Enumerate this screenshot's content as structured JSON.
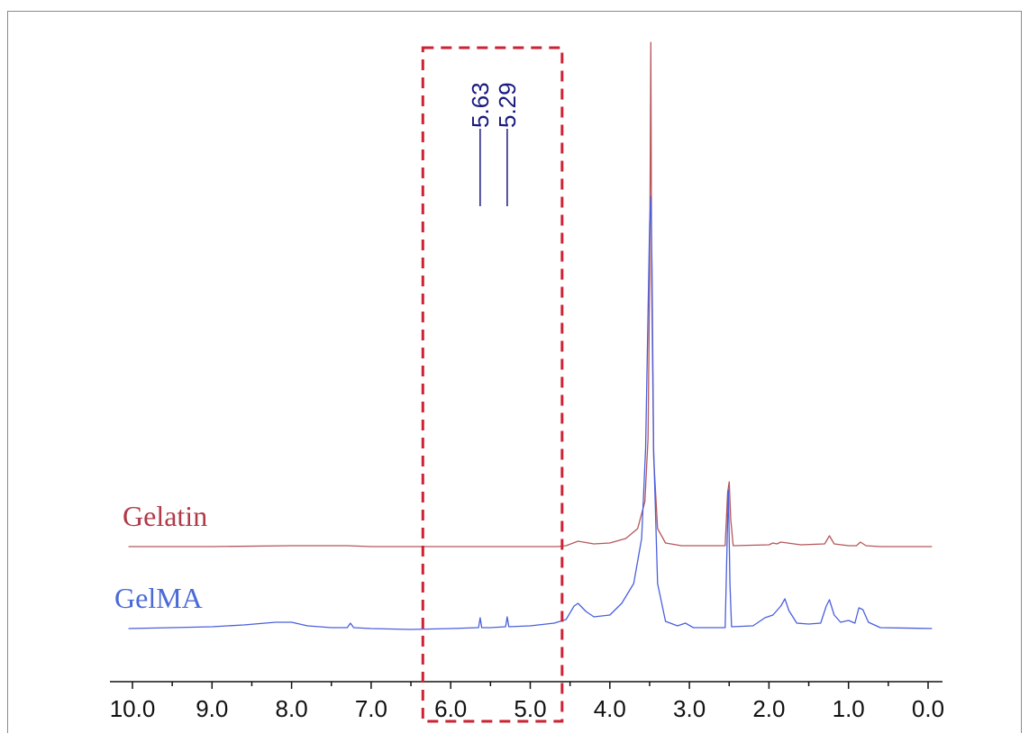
{
  "chart_data": {
    "type": "line",
    "xlabel": "",
    "ylabel": "",
    "xlim": [
      10.2,
      -0.1
    ],
    "x_reversed": true,
    "ticks": [
      "10.0",
      "9.0",
      "8.0",
      "7.0",
      "6.0",
      "5.0",
      "4.0",
      "3.0",
      "2.0",
      "1.0",
      "0.0"
    ],
    "tick_values": [
      10,
      9,
      8,
      7,
      6,
      5,
      4,
      3,
      2,
      1,
      0
    ],
    "grid": false,
    "legend": "labels left of each trace",
    "highlight_region": {
      "x_range": [
        6.35,
        4.6
      ],
      "style": "dashed",
      "color": "#cc2233"
    },
    "peak_labels": [
      {
        "label": "5.63",
        "x": 5.63
      },
      {
        "label": "5.29",
        "x": 5.29
      }
    ],
    "peak_label_color": "#1a1a80",
    "series": [
      {
        "name": "Gelatin",
        "color": "#b5575b",
        "label_color": "#b03a48",
        "points": [
          [
            10.05,
            0.0
          ],
          [
            9.0,
            0.0
          ],
          [
            8.0,
            0.1
          ],
          [
            7.3,
            0.1
          ],
          [
            7.0,
            0.0
          ],
          [
            6.0,
            0.0
          ],
          [
            5.0,
            0.0
          ],
          [
            4.65,
            0.0
          ],
          [
            4.55,
            0.1
          ],
          [
            4.4,
            0.6
          ],
          [
            4.2,
            0.3
          ],
          [
            4.0,
            0.4
          ],
          [
            3.8,
            0.9
          ],
          [
            3.65,
            2.0
          ],
          [
            3.56,
            5.0
          ],
          [
            3.52,
            12.0
          ],
          [
            3.5,
            30.0
          ],
          [
            3.485,
            56.0
          ],
          [
            3.475,
            30.0
          ],
          [
            3.45,
            10.0
          ],
          [
            3.4,
            2.0
          ],
          [
            3.3,
            0.4
          ],
          [
            3.1,
            0.1
          ],
          [
            2.55,
            0.1
          ],
          [
            2.52,
            6.0
          ],
          [
            2.5,
            7.2
          ],
          [
            2.48,
            3.0
          ],
          [
            2.45,
            0.1
          ],
          [
            2.0,
            0.2
          ],
          [
            1.95,
            0.4
          ],
          [
            1.9,
            0.3
          ],
          [
            1.85,
            0.5
          ],
          [
            1.6,
            0.2
          ],
          [
            1.3,
            0.3
          ],
          [
            1.24,
            1.2
          ],
          [
            1.18,
            0.3
          ],
          [
            1.0,
            0.1
          ],
          [
            0.9,
            0.1
          ],
          [
            0.85,
            0.5
          ],
          [
            0.78,
            0.1
          ],
          [
            0.6,
            0.0
          ],
          [
            -0.05,
            0.0
          ]
        ]
      },
      {
        "name": "GelMA",
        "color": "#4a5fdc",
        "label_color": "#4a6ad6",
        "points": [
          [
            10.05,
            0.0
          ],
          [
            9.5,
            0.1
          ],
          [
            9.0,
            0.2
          ],
          [
            8.6,
            0.4
          ],
          [
            8.2,
            0.7
          ],
          [
            8.0,
            0.7
          ],
          [
            7.8,
            0.3
          ],
          [
            7.5,
            0.1
          ],
          [
            7.3,
            0.1
          ],
          [
            7.26,
            0.6
          ],
          [
            7.22,
            0.1
          ],
          [
            7.0,
            0.0
          ],
          [
            6.5,
            -0.1
          ],
          [
            6.0,
            0.0
          ],
          [
            5.65,
            0.1
          ],
          [
            5.63,
            1.2
          ],
          [
            5.61,
            0.1
          ],
          [
            5.5,
            0.1
          ],
          [
            5.31,
            0.2
          ],
          [
            5.29,
            1.3
          ],
          [
            5.27,
            0.2
          ],
          [
            5.0,
            0.3
          ],
          [
            4.7,
            0.6
          ],
          [
            4.55,
            1.0
          ],
          [
            4.45,
            2.5
          ],
          [
            4.4,
            2.8
          ],
          [
            4.3,
            1.9
          ],
          [
            4.2,
            1.3
          ],
          [
            4.0,
            1.5
          ],
          [
            3.85,
            2.8
          ],
          [
            3.7,
            5.0
          ],
          [
            3.6,
            10.0
          ],
          [
            3.55,
            20.0
          ],
          [
            3.52,
            35.0
          ],
          [
            3.5,
            45.0
          ],
          [
            3.485,
            48.0
          ],
          [
            3.47,
            40.0
          ],
          [
            3.45,
            20.0
          ],
          [
            3.4,
            5.0
          ],
          [
            3.3,
            0.8
          ],
          [
            3.15,
            0.3
          ],
          [
            3.05,
            0.6
          ],
          [
            2.95,
            0.1
          ],
          [
            2.55,
            0.1
          ],
          [
            2.52,
            12.0
          ],
          [
            2.51,
            15.4
          ],
          [
            2.49,
            5.0
          ],
          [
            2.47,
            0.2
          ],
          [
            2.2,
            0.3
          ],
          [
            2.05,
            1.2
          ],
          [
            1.95,
            1.5
          ],
          [
            1.85,
            2.5
          ],
          [
            1.8,
            3.3
          ],
          [
            1.75,
            2.0
          ],
          [
            1.65,
            0.6
          ],
          [
            1.5,
            0.5
          ],
          [
            1.35,
            0.6
          ],
          [
            1.28,
            2.5
          ],
          [
            1.24,
            3.2
          ],
          [
            1.18,
            1.5
          ],
          [
            1.1,
            0.7
          ],
          [
            1.0,
            0.9
          ],
          [
            0.92,
            0.6
          ],
          [
            0.87,
            2.3
          ],
          [
            0.82,
            2.1
          ],
          [
            0.75,
            0.7
          ],
          [
            0.6,
            0.1
          ],
          [
            -0.05,
            0.0
          ]
        ]
      }
    ]
  }
}
